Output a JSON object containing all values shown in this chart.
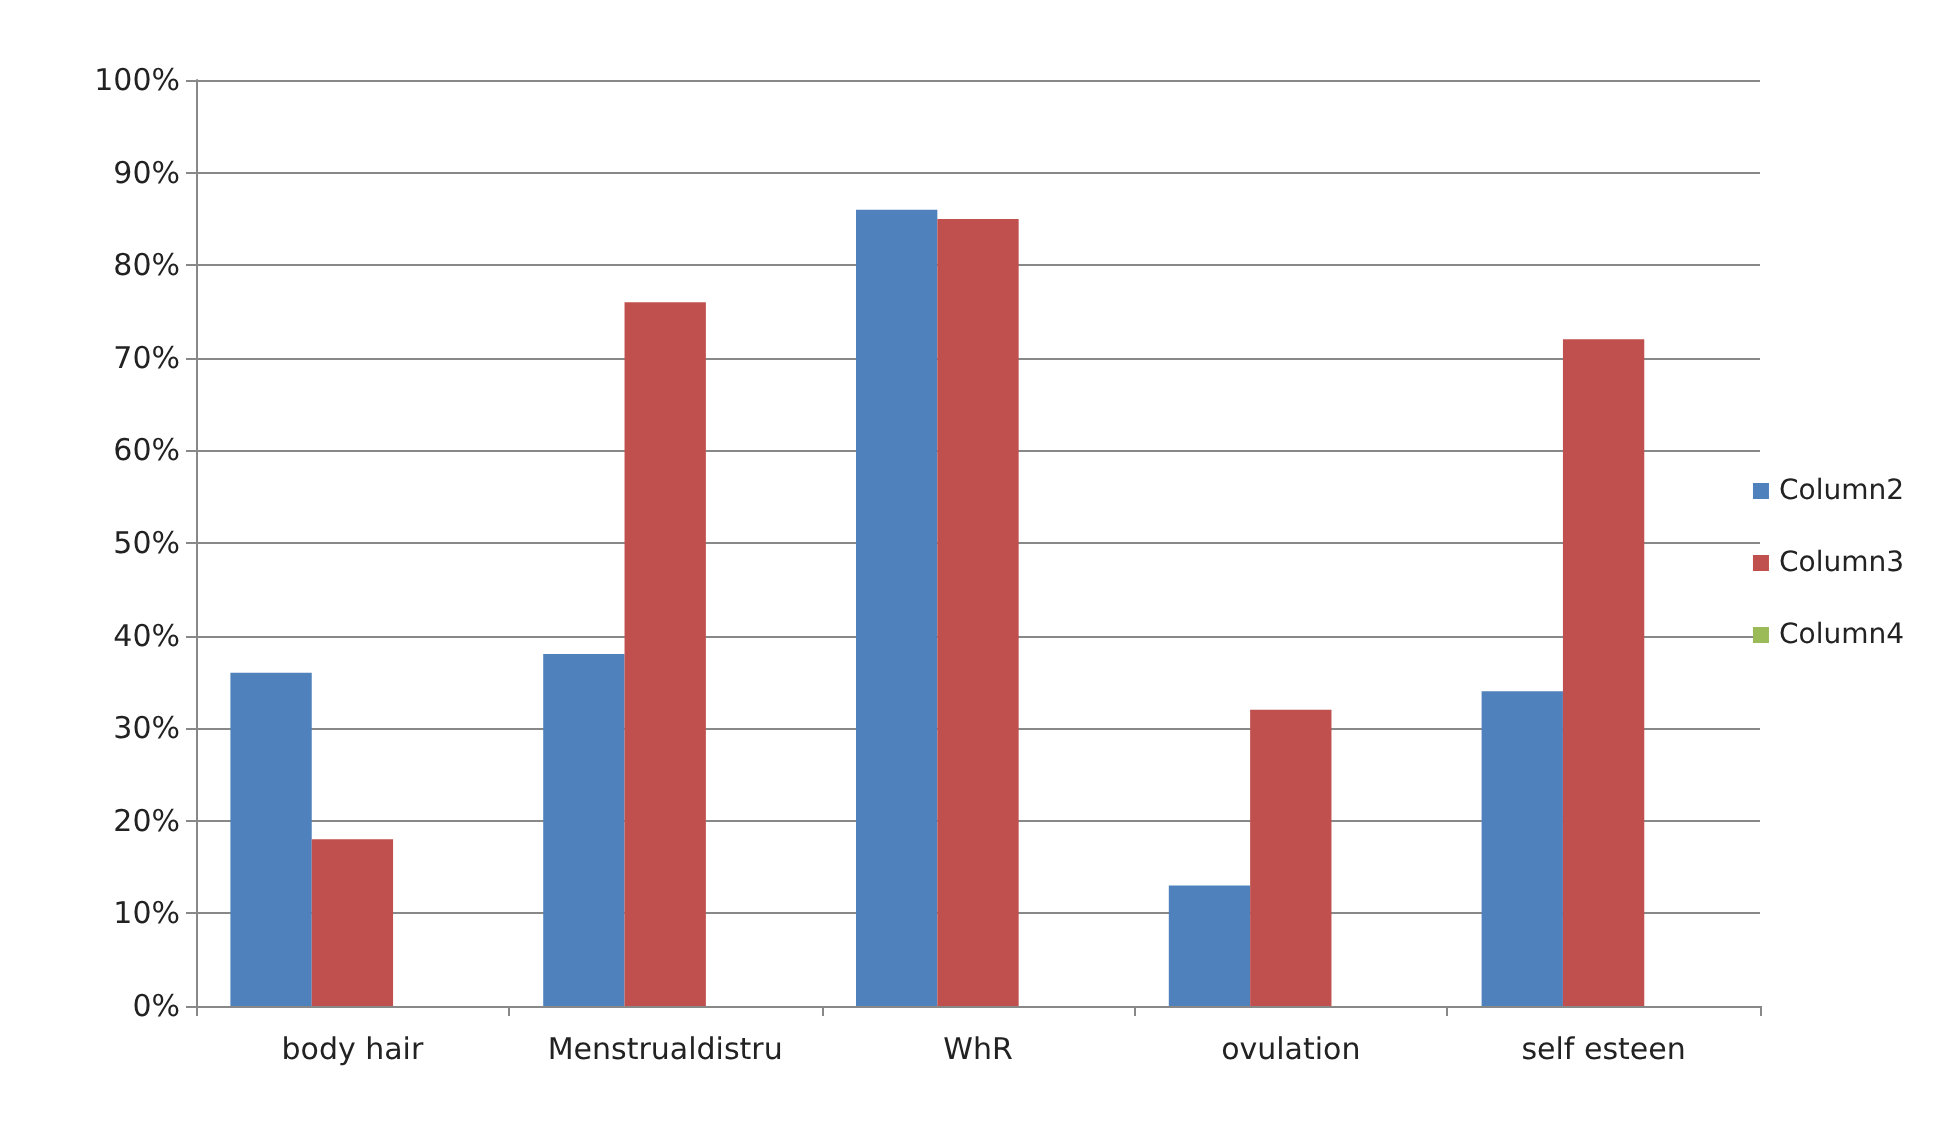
{
  "chart_data": {
    "type": "bar",
    "categories": [
      "body hair",
      "Menstrualdistru",
      "WhR",
      "ovulation",
      "self esteen"
    ],
    "series": [
      {
        "name": "Column2",
        "color": "#4f81bd",
        "values": [
          36,
          38,
          86,
          13,
          34
        ]
      },
      {
        "name": "Column3",
        "color": "#c0504d",
        "values": [
          18,
          76,
          85,
          32,
          72
        ]
      },
      {
        "name": "Column4",
        "color": "#9bbb59",
        "values": [
          null,
          null,
          null,
          null,
          null
        ]
      }
    ],
    "ylim": [
      0,
      100
    ],
    "yticks": [
      {
        "value": 0,
        "label": "0%"
      },
      {
        "value": 10,
        "label": "10%"
      },
      {
        "value": 20,
        "label": "20%"
      },
      {
        "value": 30,
        "label": "30%"
      },
      {
        "value": 40,
        "label": "40%"
      },
      {
        "value": 50,
        "label": "50%"
      },
      {
        "value": 60,
        "label": "60%"
      },
      {
        "value": 70,
        "label": "70%"
      },
      {
        "value": 80,
        "label": "80%"
      },
      {
        "value": 90,
        "label": "90%"
      },
      {
        "value": 100,
        "label": "100%"
      }
    ],
    "grid": "y",
    "legend": "right"
  }
}
